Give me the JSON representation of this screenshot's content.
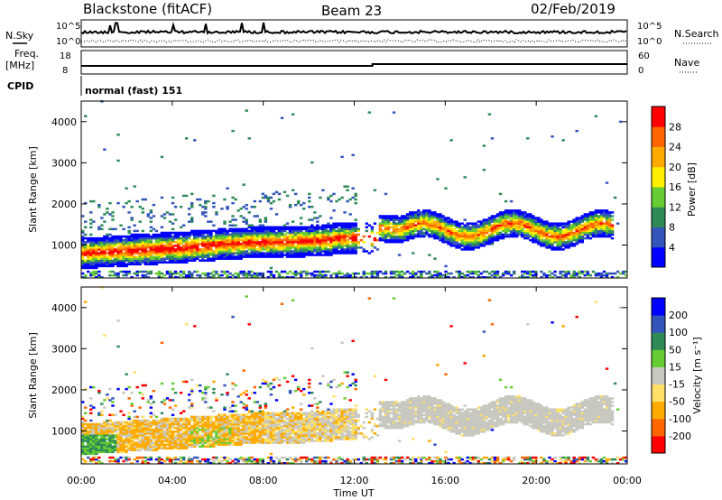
{
  "header": {
    "station": "Blackstone (fitACF)",
    "beam": "Beam 23",
    "date": "02/Feb/2019"
  },
  "summary": {
    "noise_left_label": "N.Sky",
    "noise_right_label": "N.Search",
    "noise_ticks": [
      "10^5",
      "10^0"
    ],
    "freq_label_1": "Freq.",
    "freq_label_2": "[MHz]",
    "freq_ticks": [
      "18",
      "8"
    ],
    "nave_label": "Nave",
    "nave_ticks": [
      "60",
      "0"
    ],
    "cpid_label": "CPID",
    "cpid_text": "normal (fast) 151"
  },
  "colors": {
    "power": [
      "#0000ff",
      "#3355bb",
      "#2e8b57",
      "#66cc33",
      "#ffee00",
      "#ffaa00",
      "#ff6600",
      "#ff0000"
    ],
    "velocity": [
      "#ff0000",
      "#ff6600",
      "#ffaa00",
      "#ffe066",
      "#c8c8c0",
      "#66cc33",
      "#2e8b57",
      "#3355bb",
      "#0000ff"
    ]
  },
  "chart_data": [
    {
      "type": "heatmap",
      "quantity": "power",
      "ylabel": "Slant Range [km]",
      "xlabel": "",
      "yticks": [
        1000,
        2000,
        3000,
        4000
      ],
      "ylim": [
        200,
        4500
      ],
      "xlim": [
        0,
        24
      ],
      "colorbar_label": "Power [dB]",
      "colorbar_ticks": [
        "4",
        "8",
        "12",
        "16",
        "20",
        "24",
        "28"
      ],
      "colorbar_range": [
        0,
        32
      ]
    },
    {
      "type": "heatmap",
      "quantity": "velocity",
      "ylabel": "Slant Range [km]",
      "xlabel": "Time UT",
      "yticks": [
        1000,
        2000,
        3000,
        4000
      ],
      "ylim": [
        200,
        4500
      ],
      "xlim": [
        0,
        24
      ],
      "xticks": [
        "00:00",
        "04:00",
        "08:00",
        "12:00",
        "16:00",
        "20:00",
        "00:00"
      ],
      "colorbar_label": "Velocity [m s⁻¹]",
      "colorbar_ticks": [
        "-200",
        "-100",
        "-50",
        "-15",
        "15",
        "50",
        "100",
        "200"
      ]
    }
  ]
}
